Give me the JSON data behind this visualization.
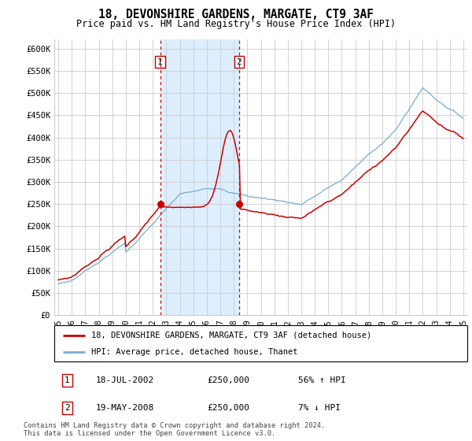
{
  "title": "18, DEVONSHIRE GARDENS, MARGATE, CT9 3AF",
  "subtitle": "Price paid vs. HM Land Registry's House Price Index (HPI)",
  "ylim": [
    0,
    620000
  ],
  "yticks": [
    0,
    50000,
    100000,
    150000,
    200000,
    250000,
    300000,
    350000,
    400000,
    450000,
    500000,
    550000,
    600000
  ],
  "ytick_labels": [
    "£0",
    "£50K",
    "£100K",
    "£150K",
    "£200K",
    "£250K",
    "£300K",
    "£350K",
    "£400K",
    "£450K",
    "£500K",
    "£550K",
    "£600K"
  ],
  "sale1_date": 2002.54,
  "sale1_price": 250000,
  "sale1_label": "1",
  "sale1_date_str": "18-JUL-2002",
  "sale1_pct": "56% ↑ HPI",
  "sale2_date": 2008.38,
  "sale2_price": 250000,
  "sale2_label": "2",
  "sale2_date_str": "19-MAY-2008",
  "sale2_pct": "7% ↓ HPI",
  "red_line_color": "#cc0000",
  "blue_line_color": "#7aabcf",
  "shade_color": "#ddeeff",
  "grid_color": "#cccccc",
  "legend_line1": "18, DEVONSHIRE GARDENS, MARGATE, CT9 3AF (detached house)",
  "legend_line2": "HPI: Average price, detached house, Thanet",
  "footer1": "Contains HM Land Registry data © Crown copyright and database right 2024.",
  "footer2": "This data is licensed under the Open Government Licence v3.0.",
  "xstart": 1995,
  "xend": 2025
}
